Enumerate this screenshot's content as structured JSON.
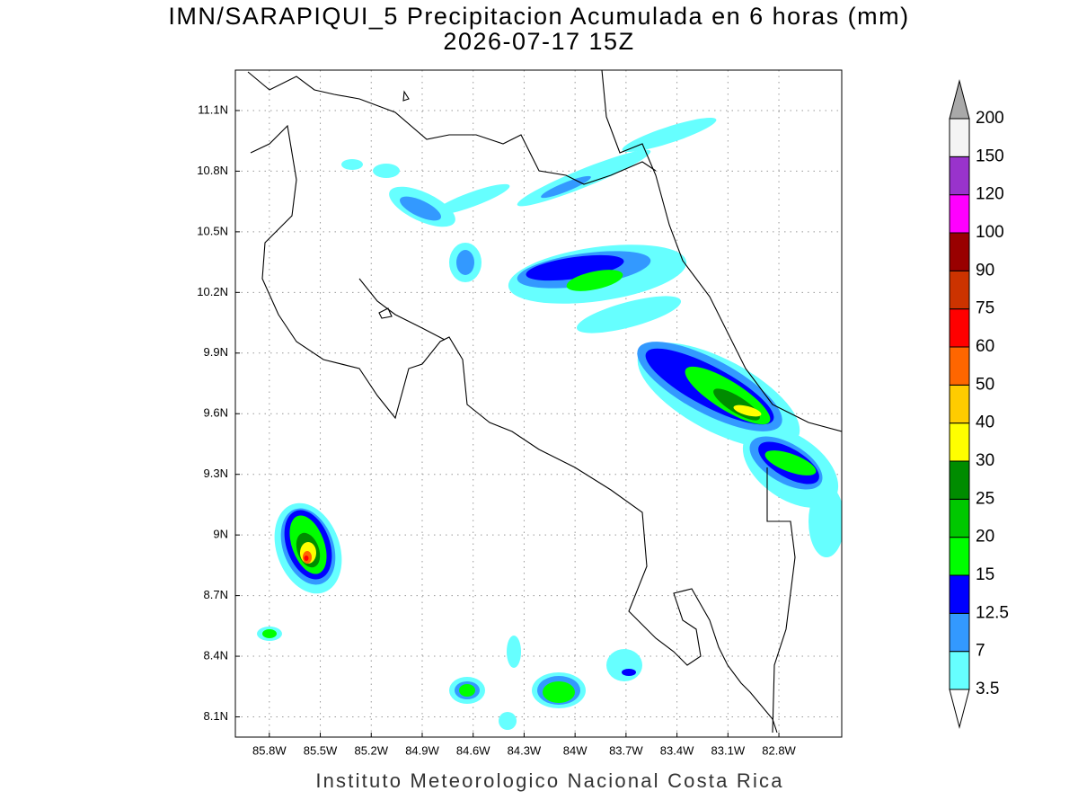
{
  "title": "IMN/SARAPIQUI_5 Precipitacion Acumulada en 6 horas (mm)",
  "subtitle": "2026-07-17 15Z",
  "footer": "Instituto Meteorologico Nacional Costa Rica",
  "map": {
    "lonlim": [
      -86.0,
      -82.43
    ],
    "latlim": [
      8.0,
      11.3
    ],
    "grid": true,
    "lon_ticks": [
      {
        "value": -85.8,
        "label": "85.8W"
      },
      {
        "value": -85.5,
        "label": "85.5W"
      },
      {
        "value": -85.2,
        "label": "85.2W"
      },
      {
        "value": -84.9,
        "label": "84.9W"
      },
      {
        "value": -84.6,
        "label": "84.6W"
      },
      {
        "value": -84.3,
        "label": "84.3W"
      },
      {
        "value": -84.0,
        "label": "84W"
      },
      {
        "value": -83.7,
        "label": "83.7W"
      },
      {
        "value": -83.4,
        "label": "83.4W"
      },
      {
        "value": -83.1,
        "label": "83.1W"
      },
      {
        "value": -82.8,
        "label": "82.8W"
      }
    ],
    "lat_ticks": [
      {
        "value": 8.1,
        "label": "8.1N"
      },
      {
        "value": 8.4,
        "label": "8.4N"
      },
      {
        "value": 8.7,
        "label": "8.7N"
      },
      {
        "value": 9.0,
        "label": "9N"
      },
      {
        "value": 9.3,
        "label": "9.3N"
      },
      {
        "value": 9.6,
        "label": "9.6N"
      },
      {
        "value": 9.9,
        "label": "9.9N"
      },
      {
        "value": 10.2,
        "label": "10.2N"
      },
      {
        "value": 10.5,
        "label": "10.5N"
      },
      {
        "value": 10.8,
        "label": "10.8N"
      },
      {
        "value": 11.1,
        "label": "11.1N"
      }
    ]
  },
  "colorbar": {
    "levels": [
      3.5,
      7,
      12.5,
      15,
      20,
      25,
      30,
      40,
      50,
      60,
      75,
      90,
      100,
      120,
      150,
      200
    ],
    "colors": [
      "#66ffff",
      "#3399ff",
      "#0000ff",
      "#00ff00",
      "#00c800",
      "#008c00",
      "#ffff00",
      "#ffcc00",
      "#ff6600",
      "#ff0000",
      "#cc3300",
      "#990000",
      "#ff00ff",
      "#9933cc",
      "#f4f4f4"
    ]
  }
}
